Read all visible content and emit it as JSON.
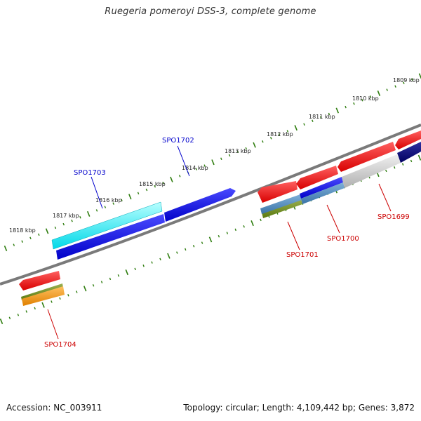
{
  "header": {
    "title": "Ruegeria pomeroyi DSS-3, complete genome"
  },
  "footer": {
    "accession": "Accession: NC_003911",
    "summary": "Topology: circular; Length: 4,109,442 bp; Genes: 3,872"
  },
  "map": {
    "colors": {
      "backbone": "#808080",
      "tick": "#2e7d0e",
      "forward_label": "#0000cc",
      "reverse_label": "#cc0000"
    },
    "kbp_labels": [
      "1809 kbp",
      "1810 kbp",
      "1811 kbp",
      "1812 kbp",
      "1813 kbp",
      "1814 kbp",
      "1815 kbp",
      "1816 kbp",
      "1817 kbp",
      "1818 kbp"
    ],
    "genes": [
      {
        "id": "SPO1699",
        "label": "SPO1699",
        "strand": "reverse"
      },
      {
        "id": "SPO1700",
        "label": "SPO1700",
        "strand": "reverse"
      },
      {
        "id": "SPO1701",
        "label": "SPO1701",
        "strand": "reverse"
      },
      {
        "id": "SPO1702",
        "label": "SPO1702",
        "strand": "forward"
      },
      {
        "id": "SPO1703",
        "label": "SPO1703",
        "strand": "forward"
      },
      {
        "id": "SPO1704",
        "label": "SPO1704",
        "strand": "reverse"
      }
    ]
  }
}
